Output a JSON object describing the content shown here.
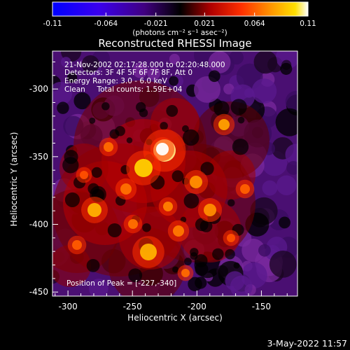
{
  "colorbar": {
    "tick_labels": [
      "-0.11",
      "-0.064",
      "-0.021",
      "0.021",
      "0.064",
      "0.11"
    ],
    "tick_values": [
      -0.11,
      -0.064,
      -0.021,
      0.021,
      0.064,
      0.11
    ],
    "range": [
      -0.11,
      0.11
    ],
    "unit_label": "(photons cm⁻² s⁻¹ asec⁻²)",
    "colors": [
      "#0000ff",
      "#5a00cc",
      "#000000",
      "#8b0000",
      "#ff2a00",
      "#ff8c00",
      "#ffd400",
      "#ffffff"
    ]
  },
  "image": {
    "title": "Reconstructed RHESSI Image",
    "annotations": {
      "time_range": "21-Nov-2002 02:17:28.000 to 02:20:48.000",
      "detectors": "Detectors: 3F 4F 5F 6F 7F 8F, Att 0",
      "energy_range": "Energy Range: 3.0 - 6.0 keV",
      "method_counts": "Clean     Total counts: 1.59E+04",
      "peak_position": "Position of Peak = [-227,-340]"
    },
    "xlabel": "Heliocentric X (arcsec)",
    "ylabel": "Heliocentric Y (arcsec)",
    "x_ticks": [
      "-300",
      "-250",
      "-200",
      "-150"
    ],
    "x_tick_values": [
      -300,
      -250,
      -200,
      -150
    ],
    "y_ticks": [
      "-300",
      "-350",
      "-400",
      "-450"
    ],
    "y_tick_values": [
      -300,
      -350,
      -400,
      -450
    ],
    "xlim": [
      -312,
      -122
    ],
    "ylim": [
      -453,
      -272
    ]
  },
  "footer": {
    "timestamp": "3-May-2022 11:57"
  }
}
